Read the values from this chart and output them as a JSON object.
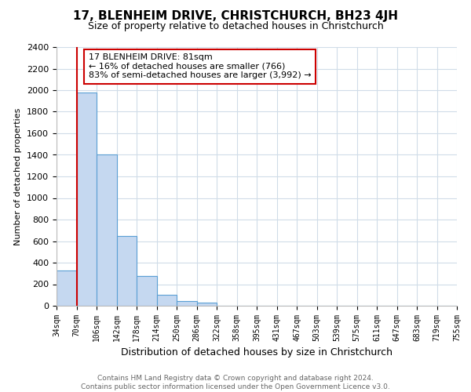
{
  "title": "17, BLENHEIM DRIVE, CHRISTCHURCH, BH23 4JH",
  "subtitle": "Size of property relative to detached houses in Christchurch",
  "xlabel": "Distribution of detached houses by size in Christchurch",
  "ylabel": "Number of detached properties",
  "bin_labels": [
    "34sqm",
    "70sqm",
    "106sqm",
    "142sqm",
    "178sqm",
    "214sqm",
    "250sqm",
    "286sqm",
    "322sqm",
    "358sqm",
    "395sqm",
    "431sqm",
    "467sqm",
    "503sqm",
    "539sqm",
    "575sqm",
    "611sqm",
    "647sqm",
    "683sqm",
    "719sqm",
    "755sqm"
  ],
  "bar_values": [
    325,
    1975,
    1400,
    650,
    280,
    105,
    45,
    30,
    0,
    0,
    0,
    0,
    0,
    0,
    0,
    0,
    0,
    0,
    0,
    0
  ],
  "bar_color": "#c5d8f0",
  "bar_edge_color": "#5a9fd4",
  "red_line_x": 1,
  "ylim": [
    0,
    2400
  ],
  "yticks": [
    0,
    200,
    400,
    600,
    800,
    1000,
    1200,
    1400,
    1600,
    1800,
    2000,
    2200,
    2400
  ],
  "annotation_title": "17 BLENHEIM DRIVE: 81sqm",
  "annotation_line1": "← 16% of detached houses are smaller (766)",
  "annotation_line2": "83% of semi-detached houses are larger (3,992) →",
  "annotation_box_color": "#ffffff",
  "annotation_box_edge": "#cc0000",
  "red_line_color": "#cc0000",
  "footer_line1": "Contains HM Land Registry data © Crown copyright and database right 2024.",
  "footer_line2": "Contains public sector information licensed under the Open Government Licence v3.0.",
  "background_color": "#ffffff",
  "grid_color": "#d0dce8"
}
